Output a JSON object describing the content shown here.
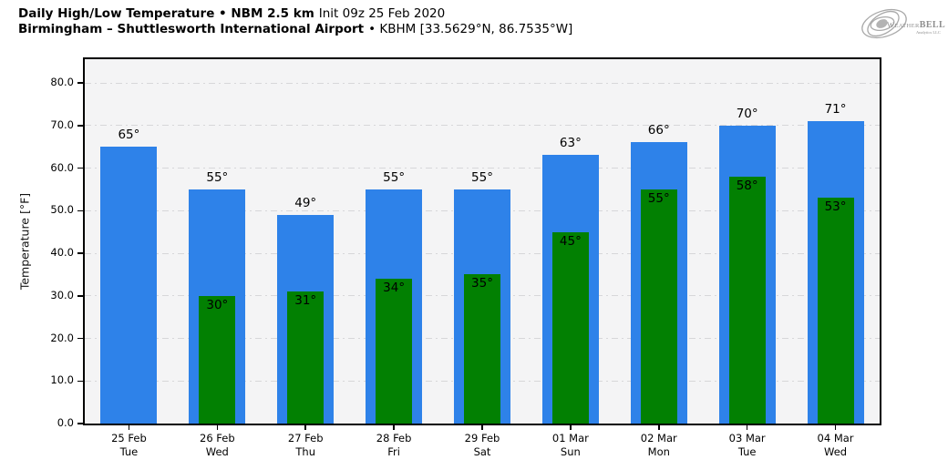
{
  "header": {
    "title_bold": "Daily High/Low Temperature • NBM 2.5 km",
    "title_regular": "Init 09z 25 Feb 2020",
    "subtitle_bold": "Birmingham – Shuttlesworth International Airport",
    "subtitle_regular": "• KBHM [33.5629°N, 86.7535°W]",
    "logo_main": "WeatherBELL",
    "logo_sub": "Analytics LLC"
  },
  "chart_data": {
    "type": "bar",
    "title": "Daily High/Low Temperature • NBM 2.5 km Init 09z 25 Feb 2020",
    "subtitle": "Birmingham – Shuttlesworth International Airport • KBHM [33.5629°N, 86.7535°W]",
    "ylabel": "Temperature [°F]",
    "xlabel": "",
    "ylim": [
      0,
      85.6
    ],
    "yticks": [
      0,
      10,
      20,
      30,
      40,
      50,
      60,
      70,
      80
    ],
    "ytick_decimals": 1,
    "grid": "horizontal dash-dot",
    "legend": "none",
    "plot_bg": "#f4f4f5",
    "grid_color": "#d7d7d9",
    "value_suffix": "°",
    "categories": [
      {
        "date": "25 Feb",
        "day": "Tue"
      },
      {
        "date": "26 Feb",
        "day": "Wed"
      },
      {
        "date": "27 Feb",
        "day": "Thu"
      },
      {
        "date": "28 Feb",
        "day": "Fri"
      },
      {
        "date": "29 Feb",
        "day": "Sat"
      },
      {
        "date": "01 Mar",
        "day": "Sun"
      },
      {
        "date": "02 Mar",
        "day": "Mon"
      },
      {
        "date": "03 Mar",
        "day": "Tue"
      },
      {
        "date": "04 Mar",
        "day": "Wed"
      }
    ],
    "series": [
      {
        "name": "Daily High",
        "color": "#2e82e9",
        "values": [
          65,
          55,
          49,
          55,
          55,
          63,
          66,
          70,
          71
        ]
      },
      {
        "name": "Daily Low",
        "color": "#028002",
        "values": [
          null,
          30,
          31,
          34,
          35,
          45,
          55,
          58,
          53
        ]
      }
    ]
  }
}
